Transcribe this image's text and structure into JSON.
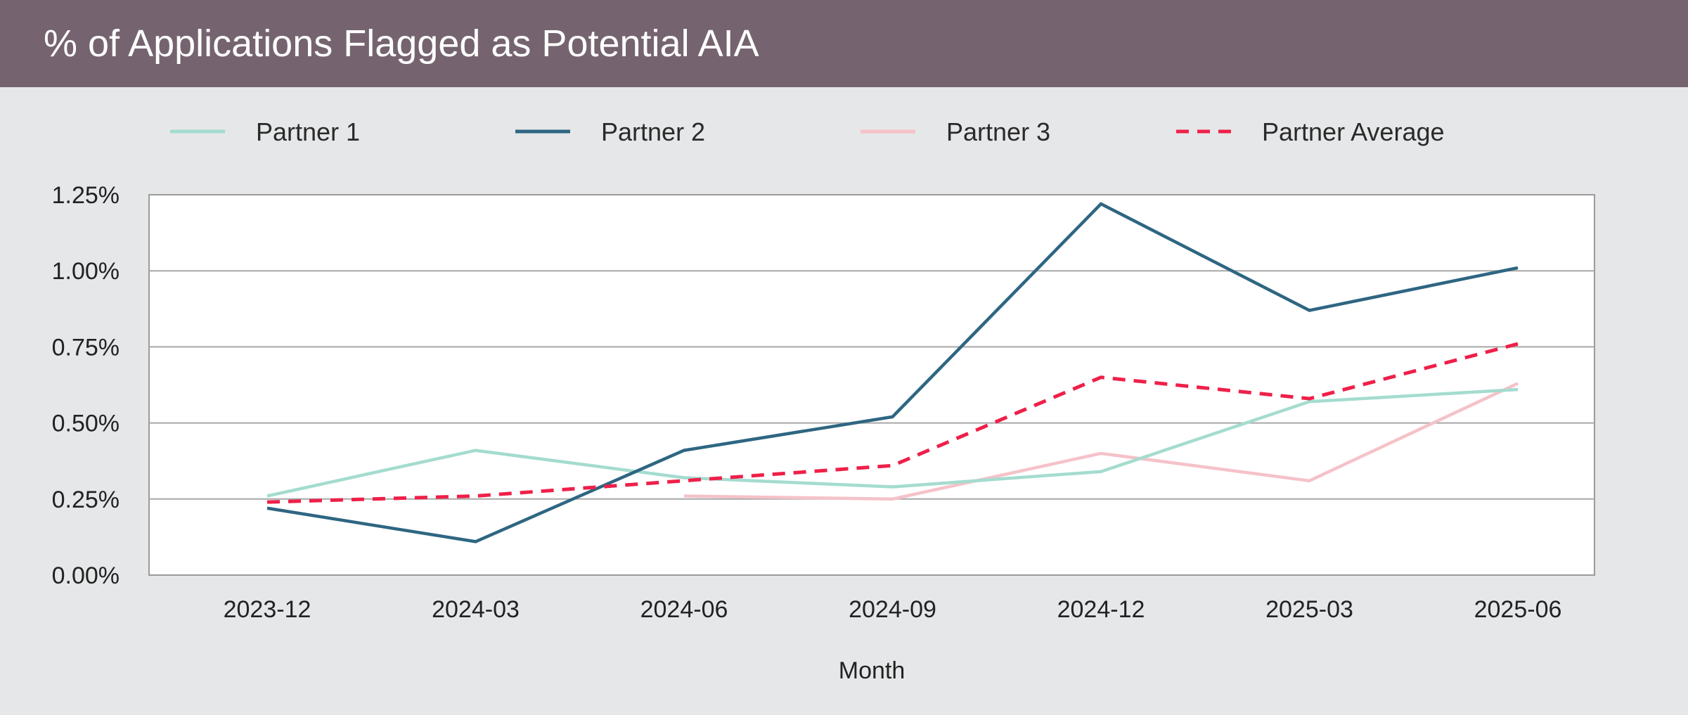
{
  "header": {
    "title": "% of Applications Flagged as Potential AIA"
  },
  "chart_data": {
    "type": "line",
    "title": "% of Applications Flagged as Potential AIA",
    "xlabel": "Month",
    "ylabel": "",
    "categories": [
      "2023-12",
      "2024-03",
      "2024-06",
      "2024-09",
      "2024-12",
      "2025-03",
      "2025-06"
    ],
    "y_ticks": [
      "0.00%",
      "0.25%",
      "0.50%",
      "0.75%",
      "1.00%",
      "1.25%"
    ],
    "ylim": [
      0,
      1.25
    ],
    "y_unit": "%",
    "grid": "horizontal",
    "legend_position": "top",
    "series": [
      {
        "name": "Partner 1",
        "color": "#a4dccf",
        "style": "solid",
        "values": [
          0.26,
          0.41,
          0.32,
          0.29,
          0.34,
          0.57,
          0.61
        ]
      },
      {
        "name": "Partner 2",
        "color": "#2e6682",
        "style": "solid",
        "values": [
          0.22,
          0.11,
          0.41,
          0.52,
          1.22,
          0.87,
          1.01
        ]
      },
      {
        "name": "Partner 3",
        "color": "#f5c2c9",
        "style": "solid",
        "values": [
          null,
          null,
          0.26,
          0.25,
          0.4,
          0.31,
          0.63
        ]
      },
      {
        "name": "Partner Average",
        "color": "#ee2049",
        "style": "dashed",
        "values": [
          0.24,
          0.26,
          0.31,
          0.36,
          0.65,
          0.58,
          0.76
        ]
      }
    ]
  }
}
